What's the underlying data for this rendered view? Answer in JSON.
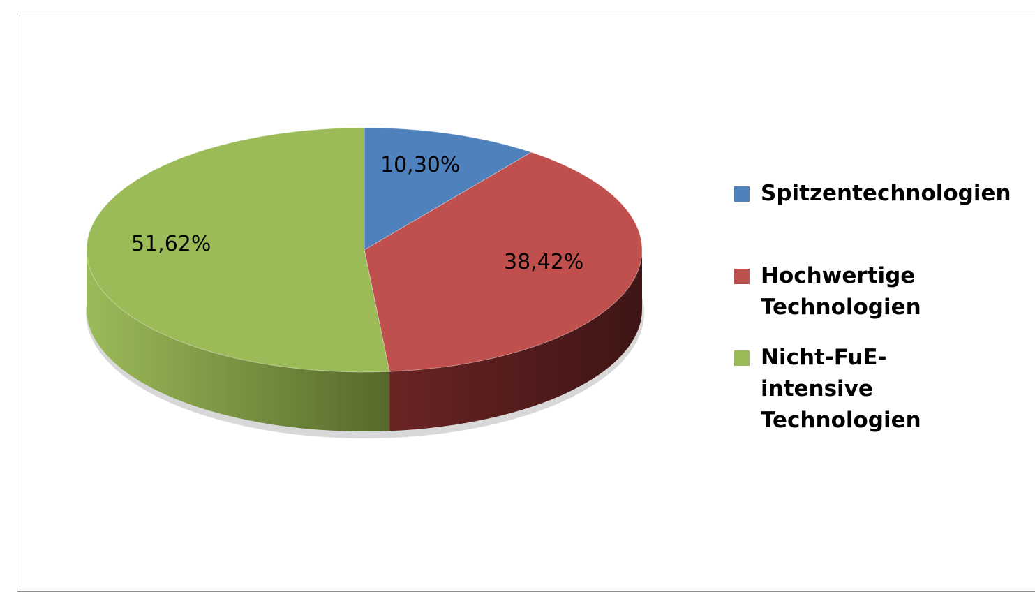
{
  "chart_data": {
    "type": "pie",
    "style": "3d",
    "title": "",
    "legend_position": "right",
    "unit": "%",
    "series": [
      {
        "name": "Spitzentechnologien",
        "value": 10.3,
        "label": "10,30%",
        "color": "#4f81bd",
        "side_color": "#2c4d75"
      },
      {
        "name": "Hochwertige Technologien",
        "value": 38.42,
        "label": "38,42%",
        "color": "#c0504d",
        "side_color": "#4d1b1b"
      },
      {
        "name": "Nicht-FuE-intensive Technologien",
        "value": 51.62,
        "label": "51,62%",
        "color": "#9bbb59",
        "side_color": "#56692b"
      }
    ],
    "legend": [
      {
        "label": "Spitzentechnologien"
      },
      {
        "label": "Hochwertige Technologien"
      },
      {
        "label": "Nicht-FuE-intensive Technologien"
      }
    ]
  }
}
